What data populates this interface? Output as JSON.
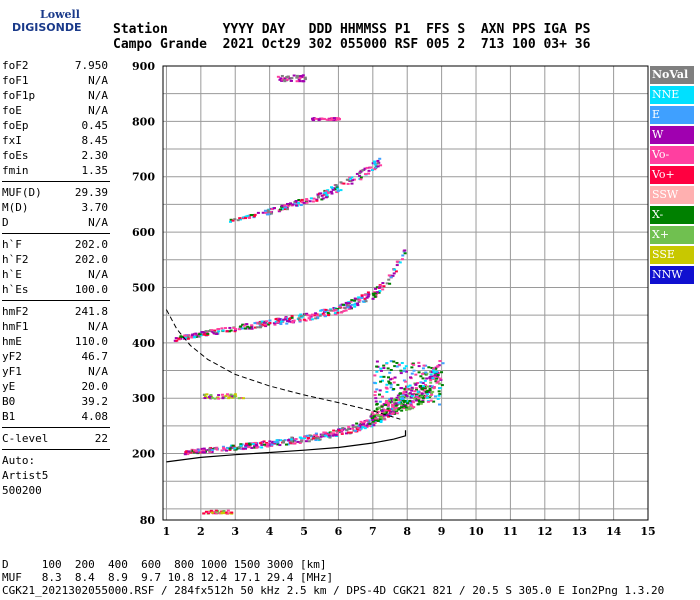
{
  "logo": {
    "line1": "Lowell",
    "line2": "DIGISONDE"
  },
  "header": {
    "line1": "Station       YYYY DAY   DDD HHMMSS P1  FFS S  AXN PPS IGA PS",
    "line2": "Campo Grande  2021 Oct29 302 055000 RSF 005 2  713 100 03+ 36"
  },
  "params_a": [
    {
      "k": "foF2",
      "v": "7.950"
    },
    {
      "k": "foF1",
      "v": "N/A"
    },
    {
      "k": "foF1p",
      "v": "N/A"
    },
    {
      "k": "foE",
      "v": "N/A"
    },
    {
      "k": "foEp",
      "v": "0.45"
    },
    {
      "k": "fxI",
      "v": "8.45"
    },
    {
      "k": "foEs",
      "v": "2.30"
    },
    {
      "k": "fmin",
      "v": "1.35"
    }
  ],
  "params_b": [
    {
      "k": "MUF(D)",
      "v": "29.39"
    },
    {
      "k": "M(D)",
      "v": "3.70"
    },
    {
      "k": "D",
      "v": "N/A"
    }
  ],
  "params_c": [
    {
      "k": "h`F",
      "v": "202.0"
    },
    {
      "k": "h`F2",
      "v": "202.0"
    },
    {
      "k": "h`E",
      "v": "N/A"
    },
    {
      "k": "h`Es",
      "v": "100.0"
    }
  ],
  "params_d": [
    {
      "k": "hmF2",
      "v": "241.8"
    },
    {
      "k": "hmF1",
      "v": "N/A"
    },
    {
      "k": "hmE",
      "v": "110.0"
    },
    {
      "k": "yF2",
      "v": "46.7"
    },
    {
      "k": "yF1",
      "v": "N/A"
    },
    {
      "k": "yE",
      "v": "20.0"
    },
    {
      "k": "B0",
      "v": "39.2"
    },
    {
      "k": "B1",
      "v": "4.08"
    }
  ],
  "params_e": [
    {
      "k": "C-level",
      "v": "22"
    }
  ],
  "autoscaling": {
    "l1": "Auto:",
    "l2": "Artist5",
    "l3": "500200"
  },
  "legend": [
    {
      "label": "NoVal",
      "color": "#7f7f7f"
    },
    {
      "label": "NNE",
      "color": "#00e0ff"
    },
    {
      "label": "E",
      "color": "#3fa0ff"
    },
    {
      "label": "W",
      "color": "#a000b0"
    },
    {
      "label": "Vo-",
      "color": "#ff3fa0"
    },
    {
      "label": "Vo+",
      "color": "#ff0040"
    },
    {
      "label": "SSW",
      "color": "#ffb0b0"
    },
    {
      "label": "X-",
      "color": "#008000"
    },
    {
      "label": "X+",
      "color": "#70c050"
    },
    {
      "label": "SSE",
      "color": "#c8c800"
    },
    {
      "label": "NNW",
      "color": "#1010d0"
    }
  ],
  "footer": {
    "line1": "D     100  200  400  600  800 1000 1500 3000 [km]",
    "line2": "MUF   8.3  8.4  8.9  9.7 10.8 12.4 17.1 29.4 [MHz]",
    "line3": "CGK21_2021302055000.RSF / 284fx512h 50 kHz 2.5 km / DPS-4D CGK21 821 / 20.5 S 305.0 E Ion2Png 1.3.20"
  },
  "chart_data": {
    "type": "scatter",
    "title": "",
    "xlabel": "",
    "ylabel": "",
    "xlim": [
      0.9,
      15
    ],
    "ylim": [
      80,
      900
    ],
    "x_ticks": [
      1,
      2,
      3,
      4,
      5,
      6,
      7,
      8,
      9,
      10,
      11,
      12,
      13,
      14,
      15
    ],
    "y_ticks": [
      200,
      300,
      400,
      500,
      600,
      700,
      800,
      900
    ],
    "y_tick_bottom": 80,
    "grid": true,
    "legend_placement": "right",
    "traces": [
      {
        "name": "F2 O-trace (1st hop)",
        "x": [
          1.5,
          2.0,
          3.0,
          4.0,
          5.0,
          6.0,
          6.8,
          7.3,
          7.6,
          7.8,
          7.95
        ],
        "y": [
          204,
          207,
          213,
          220,
          228,
          240,
          255,
          270,
          285,
          300,
          320
        ]
      },
      {
        "name": "F2 O-trace (2nd hop)",
        "x": [
          1.2,
          2.0,
          3.0,
          4.0,
          5.0,
          6.0,
          7.0,
          7.5,
          7.9
        ],
        "y": [
          408,
          418,
          428,
          438,
          448,
          462,
          490,
          520,
          570
        ]
      },
      {
        "name": "F2 O-trace (3rd hop)",
        "x": [
          2.8,
          3.5,
          4.5,
          5.5,
          6.5,
          7.2
        ],
        "y": [
          622,
          630,
          648,
          668,
          700,
          730
        ]
      },
      {
        "name": "X-trace",
        "x": [
          6.9,
          7.5,
          8.0,
          8.5,
          8.9
        ],
        "y": [
          265,
          285,
          300,
          320,
          345
        ]
      }
    ],
    "profile": {
      "name": "electron density profile",
      "x": [
        1.0,
        2.0,
        3.0,
        4.0,
        5.0,
        6.0,
        7.0,
        7.6,
        7.95,
        7.95
      ],
      "y": [
        185,
        193,
        198,
        202,
        206,
        211,
        219,
        226,
        232,
        242
      ]
    },
    "muf_curve": {
      "name": "MUF",
      "x": [
        1.0,
        1.3,
        1.7,
        2.2,
        3.0,
        4.0,
        5.0,
        6.0,
        7.0,
        7.8
      ],
      "y": [
        460,
        425,
        395,
        370,
        343,
        322,
        306,
        292,
        277,
        262
      ]
    }
  }
}
